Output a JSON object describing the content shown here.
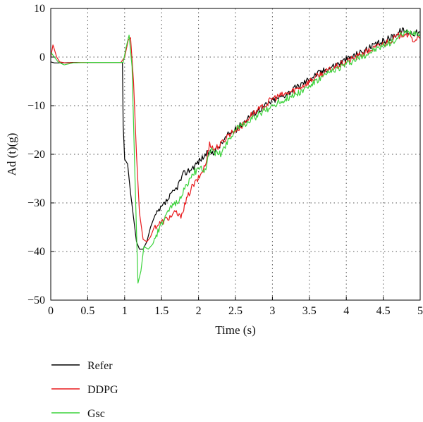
{
  "chart_data": {
    "type": "line",
    "xlabel": "Time (s)",
    "ylabel": "Ad (t)(g)",
    "xlim": [
      0,
      5
    ],
    "ylim": [
      -50,
      10
    ],
    "xticks": [
      0,
      0.5,
      1,
      1.5,
      2,
      2.5,
      3,
      3.5,
      4,
      4.5,
      5
    ],
    "xtick_labels": [
      "0",
      "0.5",
      "1",
      "1.5",
      "2",
      "2.5",
      "3",
      "3.5",
      "4",
      "4.5",
      "5"
    ],
    "yticks": [
      10,
      0,
      -10,
      -20,
      -30,
      -40,
      -50
    ],
    "ytick_labels": [
      "10",
      "0",
      "−10",
      "−20",
      "−30",
      "−40",
      "−50"
    ],
    "grid": true,
    "legend_position": "below-left",
    "series": [
      {
        "name": "Refer",
        "color": "#000000",
        "points": [
          [
            0,
            -1
          ],
          [
            0.05,
            -1.2
          ],
          [
            0.15,
            -1.2
          ],
          [
            0.3,
            -1.1
          ],
          [
            0.5,
            -1.1
          ],
          [
            0.7,
            -1.1
          ],
          [
            0.97,
            -1.1
          ],
          [
            0.98,
            -14
          ],
          [
            1.0,
            -21
          ],
          [
            1.04,
            -22
          ],
          [
            1.08,
            -28
          ],
          [
            1.12,
            -33
          ],
          [
            1.16,
            -38
          ],
          [
            1.2,
            -39.5
          ],
          [
            1.25,
            -39.5
          ],
          [
            1.3,
            -38
          ],
          [
            1.35,
            -35
          ],
          [
            1.4,
            -33
          ],
          [
            1.5,
            -31
          ],
          [
            1.6,
            -29
          ],
          [
            1.7,
            -27
          ],
          [
            1.8,
            -24
          ],
          [
            1.9,
            -23
          ],
          [
            2.0,
            -21.5
          ],
          [
            2.1,
            -20
          ],
          [
            2.2,
            -19.5
          ],
          [
            2.3,
            -18
          ],
          [
            2.4,
            -16
          ],
          [
            2.5,
            -15
          ],
          [
            2.6,
            -13.5
          ],
          [
            2.7,
            -12
          ],
          [
            2.8,
            -11
          ],
          [
            2.9,
            -10
          ],
          [
            3.0,
            -9
          ],
          [
            3.2,
            -7.5
          ],
          [
            3.4,
            -5.5
          ],
          [
            3.6,
            -3.5
          ],
          [
            3.8,
            -2
          ],
          [
            4.0,
            -0.5
          ],
          [
            4.2,
            1
          ],
          [
            4.4,
            2.5
          ],
          [
            4.6,
            4
          ],
          [
            4.75,
            5.5
          ],
          [
            4.9,
            5
          ],
          [
            5.0,
            5
          ]
        ]
      },
      {
        "name": "DDPG",
        "color": "#e8191c",
        "points": [
          [
            0,
            0
          ],
          [
            0.03,
            2.5
          ],
          [
            0.08,
            0
          ],
          [
            0.12,
            -1
          ],
          [
            0.2,
            -1.2
          ],
          [
            0.4,
            -1.1
          ],
          [
            0.7,
            -1.1
          ],
          [
            0.95,
            -1.1
          ],
          [
            1.0,
            0
          ],
          [
            1.05,
            3.5
          ],
          [
            1.08,
            4
          ],
          [
            1.12,
            -5
          ],
          [
            1.16,
            -20
          ],
          [
            1.2,
            -32
          ],
          [
            1.25,
            -37.5
          ],
          [
            1.3,
            -38
          ],
          [
            1.35,
            -37
          ],
          [
            1.4,
            -35
          ],
          [
            1.5,
            -34
          ],
          [
            1.6,
            -33
          ],
          [
            1.7,
            -32
          ],
          [
            1.75,
            -33
          ],
          [
            1.8,
            -31
          ],
          [
            1.9,
            -27
          ],
          [
            2.0,
            -25
          ],
          [
            2.1,
            -22
          ],
          [
            2.15,
            -17.5
          ],
          [
            2.2,
            -19
          ],
          [
            2.3,
            -18
          ],
          [
            2.4,
            -16
          ],
          [
            2.5,
            -15
          ],
          [
            2.6,
            -14
          ],
          [
            2.7,
            -12
          ],
          [
            2.8,
            -11
          ],
          [
            2.9,
            -10
          ],
          [
            3.0,
            -8.5
          ],
          [
            3.2,
            -7.5
          ],
          [
            3.4,
            -6
          ],
          [
            3.6,
            -4
          ],
          [
            3.8,
            -2.5
          ],
          [
            4.0,
            -1
          ],
          [
            4.2,
            0.5
          ],
          [
            4.4,
            2
          ],
          [
            4.6,
            3.5
          ],
          [
            4.8,
            5
          ],
          [
            4.9,
            3.5
          ],
          [
            5.0,
            4
          ]
        ]
      },
      {
        "name": "Gsc",
        "color": "#3bd33b",
        "points": [
          [
            0,
            1
          ],
          [
            0.05,
            0
          ],
          [
            0.1,
            -1
          ],
          [
            0.18,
            -1.6
          ],
          [
            0.3,
            -1.2
          ],
          [
            0.5,
            -1.1
          ],
          [
            0.8,
            -1.1
          ],
          [
            0.98,
            -1.1
          ],
          [
            1.02,
            2
          ],
          [
            1.06,
            4.5
          ],
          [
            1.1,
            -2
          ],
          [
            1.14,
            -25
          ],
          [
            1.18,
            -46.5
          ],
          [
            1.22,
            -44
          ],
          [
            1.26,
            -39
          ],
          [
            1.32,
            -39.5
          ],
          [
            1.38,
            -38.5
          ],
          [
            1.45,
            -36
          ],
          [
            1.55,
            -33
          ],
          [
            1.65,
            -30.5
          ],
          [
            1.75,
            -29
          ],
          [
            1.85,
            -26
          ],
          [
            1.95,
            -23.5
          ],
          [
            2.05,
            -23
          ],
          [
            2.1,
            -23.5
          ],
          [
            2.15,
            -19
          ],
          [
            2.2,
            -19.5
          ],
          [
            2.3,
            -20
          ],
          [
            2.4,
            -17
          ],
          [
            2.5,
            -15
          ],
          [
            2.6,
            -14
          ],
          [
            2.7,
            -13
          ],
          [
            2.8,
            -12
          ],
          [
            2.9,
            -11
          ],
          [
            3.0,
            -10
          ],
          [
            3.2,
            -8.5
          ],
          [
            3.4,
            -7
          ],
          [
            3.6,
            -5
          ],
          [
            3.8,
            -3
          ],
          [
            4.0,
            -1.5
          ],
          [
            4.2,
            0
          ],
          [
            4.4,
            1.5
          ],
          [
            4.6,
            3
          ],
          [
            4.8,
            5
          ],
          [
            5.0,
            5
          ]
        ]
      }
    ]
  }
}
